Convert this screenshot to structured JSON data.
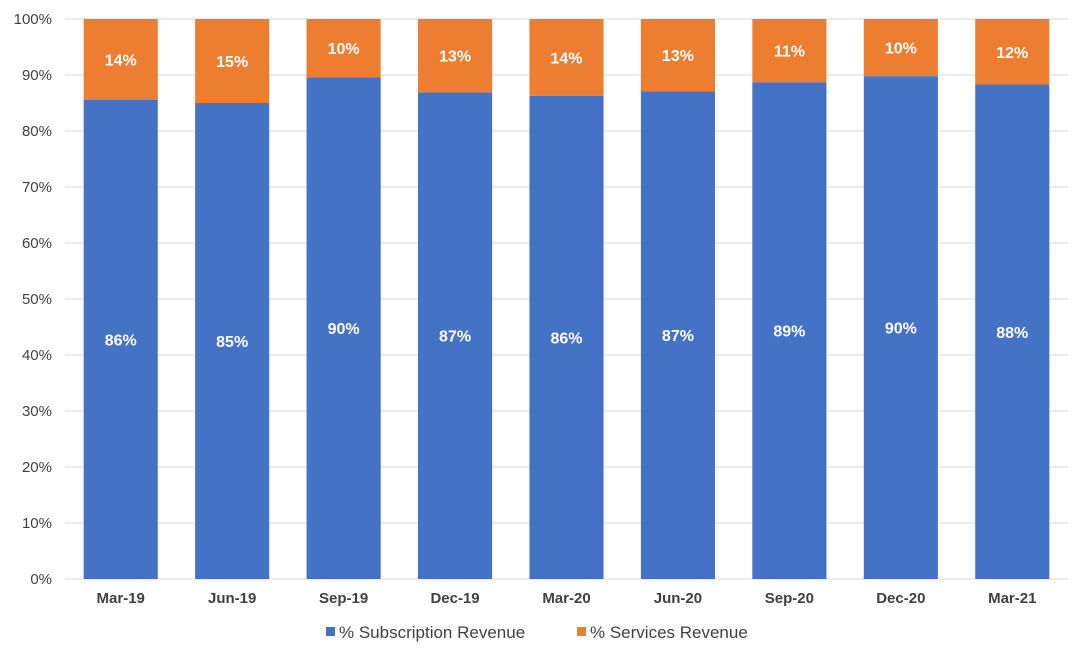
{
  "chart_data": {
    "type": "bar",
    "stacked": true,
    "categories": [
      "Mar-19",
      "Jun-19",
      "Sep-19",
      "Dec-19",
      "Mar-20",
      "Jun-20",
      "Sep-20",
      "Dec-20",
      "Mar-21"
    ],
    "series": [
      {
        "name": "% Subscription Revenue",
        "color": "#4472C4",
        "values": [
          85.6,
          85.0,
          89.6,
          86.9,
          86.3,
          87.1,
          88.7,
          89.8,
          88.3
        ],
        "labels": [
          "86%",
          "85%",
          "90%",
          "87%",
          "86%",
          "87%",
          "89%",
          "90%",
          "88%"
        ]
      },
      {
        "name": "% Services Revenue",
        "color": "#ED7D31",
        "values": [
          14.4,
          15.0,
          10.4,
          13.1,
          13.7,
          12.9,
          11.3,
          10.2,
          11.7
        ],
        "labels": [
          "14%",
          "15%",
          "10%",
          "13%",
          "14%",
          "13%",
          "11%",
          "10%",
          "12%"
        ]
      }
    ],
    "y_ticks": [
      "0%",
      "10%",
      "20%",
      "30%",
      "40%",
      "50%",
      "60%",
      "70%",
      "80%",
      "90%",
      "100%"
    ],
    "ylim": [
      0,
      100
    ],
    "grid": true,
    "legend_position": "bottom"
  }
}
